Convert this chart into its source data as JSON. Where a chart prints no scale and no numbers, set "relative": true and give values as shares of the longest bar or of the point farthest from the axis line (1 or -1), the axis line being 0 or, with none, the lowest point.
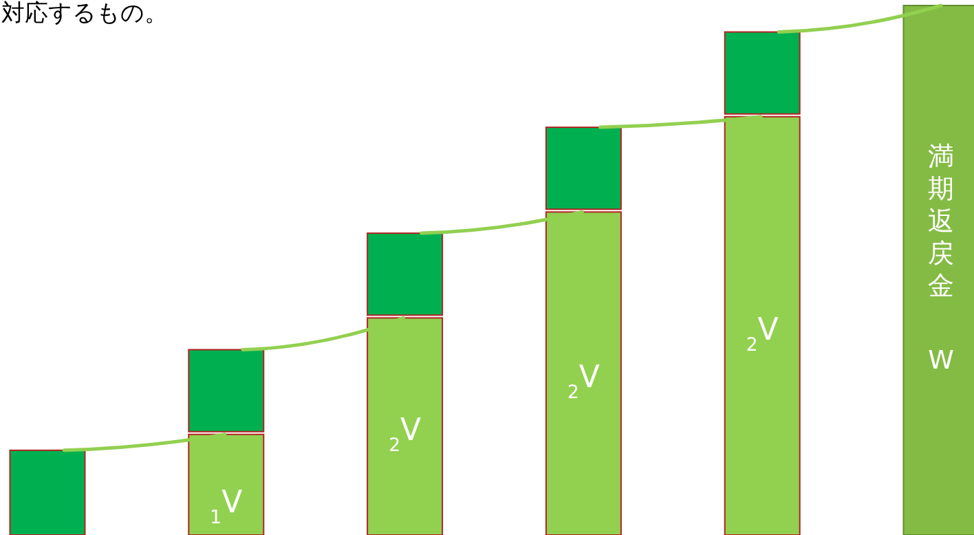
{
  "chart_data": {
    "type": "bar",
    "stacked": true,
    "relative": true,
    "title": "対応するもの。",
    "categories": [
      null,
      null,
      null,
      null,
      null,
      null
    ],
    "series": [
      {
        "color": "#92d050",
        "values": [
          null,
          0.19,
          0.41,
          0.61,
          0.79,
          null
        ]
      },
      {
        "color": "#00b050",
        "values": [
          0.16,
          0.16,
          0.16,
          0.16,
          0.16,
          null
        ]
      },
      {
        "color": "#84bb44",
        "values": [
          null,
          null,
          null,
          null,
          null,
          1.0
        ]
      }
    ],
    "annotations": [
      "$_{1}$V",
      "$_{2}$V",
      "$_{2}$V",
      "$_{2}$V",
      "満期返戻金",
      "W"
    ]
  }
}
